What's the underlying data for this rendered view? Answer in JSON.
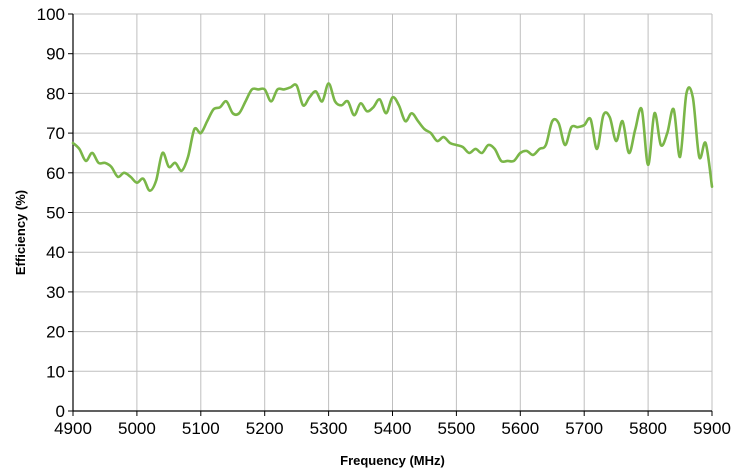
{
  "chart_data": {
    "type": "line",
    "title": "",
    "xlabel": "Frequency (MHz)",
    "ylabel": "Efficiency (%)",
    "xlim": [
      4900,
      5900
    ],
    "ylim": [
      0,
      100
    ],
    "x_ticks": [
      4900,
      5000,
      5100,
      5200,
      5300,
      5400,
      5500,
      5600,
      5700,
      5800,
      5900
    ],
    "y_ticks": [
      0,
      10,
      20,
      30,
      40,
      50,
      60,
      70,
      80,
      90,
      100
    ],
    "grid": true,
    "legend": "none",
    "colors": {
      "line": "#7ab648",
      "grid": "#bfbfbf",
      "axis": "#000000"
    },
    "series": [
      {
        "values": [
          [
            4900,
            67.5
          ],
          [
            4910,
            66
          ],
          [
            4920,
            63
          ],
          [
            4930,
            65
          ],
          [
            4940,
            62.5
          ],
          [
            4950,
            62.5
          ],
          [
            4960,
            61.5
          ],
          [
            4970,
            59
          ],
          [
            4980,
            60
          ],
          [
            4990,
            59
          ],
          [
            5000,
            57.5
          ],
          [
            5010,
            58.5
          ],
          [
            5020,
            55.5
          ],
          [
            5030,
            58
          ],
          [
            5040,
            65
          ],
          [
            5050,
            61.5
          ],
          [
            5060,
            62.5
          ],
          [
            5070,
            60.5
          ],
          [
            5080,
            64
          ],
          [
            5090,
            71
          ],
          [
            5100,
            70
          ],
          [
            5110,
            73
          ],
          [
            5120,
            76
          ],
          [
            5130,
            76.5
          ],
          [
            5140,
            78
          ],
          [
            5150,
            75
          ],
          [
            5160,
            75
          ],
          [
            5170,
            78
          ],
          [
            5180,
            81
          ],
          [
            5190,
            81
          ],
          [
            5200,
            81
          ],
          [
            5210,
            78
          ],
          [
            5220,
            81
          ],
          [
            5230,
            81
          ],
          [
            5240,
            81.5
          ],
          [
            5250,
            82
          ],
          [
            5260,
            77
          ],
          [
            5270,
            79
          ],
          [
            5280,
            80.5
          ],
          [
            5290,
            78
          ],
          [
            5300,
            82.5
          ],
          [
            5310,
            78
          ],
          [
            5320,
            77
          ],
          [
            5330,
            78
          ],
          [
            5340,
            74.5
          ],
          [
            5350,
            77.5
          ],
          [
            5360,
            75.5
          ],
          [
            5370,
            76.5
          ],
          [
            5380,
            78.5
          ],
          [
            5390,
            75
          ],
          [
            5400,
            79
          ],
          [
            5410,
            77
          ],
          [
            5420,
            73
          ],
          [
            5430,
            75
          ],
          [
            5440,
            73
          ],
          [
            5450,
            71
          ],
          [
            5460,
            70
          ],
          [
            5470,
            68
          ],
          [
            5480,
            69
          ],
          [
            5490,
            67.5
          ],
          [
            5500,
            67
          ],
          [
            5510,
            66.5
          ],
          [
            5520,
            65
          ],
          [
            5530,
            66
          ],
          [
            5540,
            65
          ],
          [
            5550,
            67
          ],
          [
            5560,
            66
          ],
          [
            5570,
            63
          ],
          [
            5580,
            63
          ],
          [
            5590,
            63
          ],
          [
            5600,
            65
          ],
          [
            5610,
            65.5
          ],
          [
            5620,
            64.5
          ],
          [
            5630,
            66
          ],
          [
            5640,
            67
          ],
          [
            5650,
            73
          ],
          [
            5660,
            72.5
          ],
          [
            5670,
            67
          ],
          [
            5680,
            71.5
          ],
          [
            5690,
            71.5
          ],
          [
            5700,
            72
          ],
          [
            5710,
            73.5
          ],
          [
            5720,
            66
          ],
          [
            5730,
            74.5
          ],
          [
            5740,
            74
          ],
          [
            5750,
            68
          ],
          [
            5760,
            73
          ],
          [
            5770,
            65
          ],
          [
            5780,
            71
          ],
          [
            5790,
            76
          ],
          [
            5800,
            62
          ],
          [
            5810,
            75
          ],
          [
            5820,
            67
          ],
          [
            5830,
            70
          ],
          [
            5840,
            76
          ],
          [
            5850,
            64
          ],
          [
            5860,
            80
          ],
          [
            5870,
            79
          ],
          [
            5880,
            64
          ],
          [
            5890,
            67.5
          ],
          [
            5900,
            56.5
          ]
        ]
      }
    ]
  }
}
